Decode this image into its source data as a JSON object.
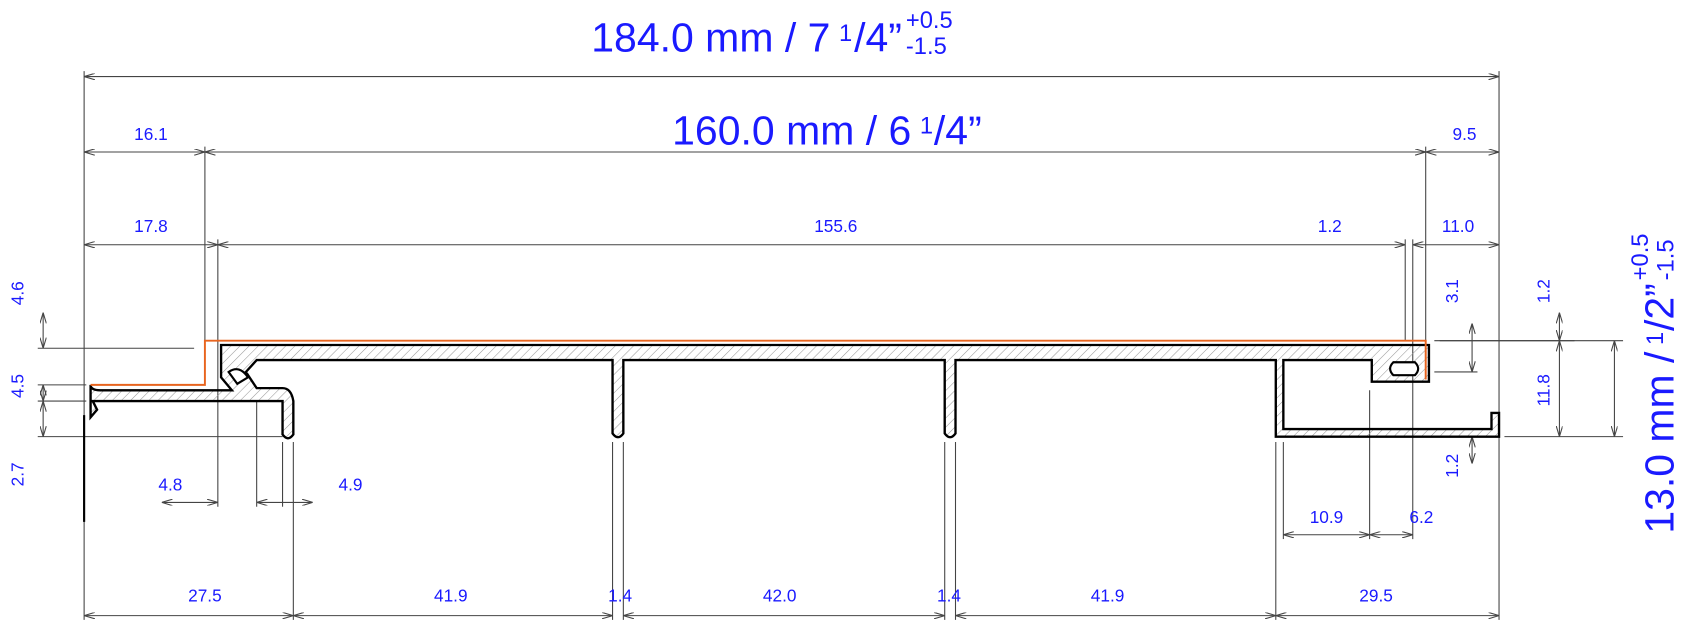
{
  "overall_width": {
    "text": "184.0 mm / 7",
    "frac_num": "1",
    "frac_rest": "/4”",
    "tol_plus": "+0.5",
    "tol_minus": "-1.5"
  },
  "cover_width": {
    "text": "160.0 mm / 6",
    "frac_num": "1",
    "frac_rest": "/4”"
  },
  "overall_height": {
    "text": "13.0 mm /",
    "frac_num": "1",
    "frac_rest": "/2”",
    "tol_plus": "+0.5",
    "tol_minus": "-1.5"
  },
  "dimensions": [
    "16.1",
    "9.5",
    "17.8",
    "155.6",
    "1.2",
    "11.0",
    "4.6",
    "4.5",
    "2.7",
    "4.8",
    "4.9",
    "3.1",
    "1.2",
    "11.8",
    "1.2",
    "10.9",
    "6.2",
    "27.5",
    "41.9",
    "1.4",
    "42.0",
    "1.4",
    "41.9",
    "29.5"
  ]
}
